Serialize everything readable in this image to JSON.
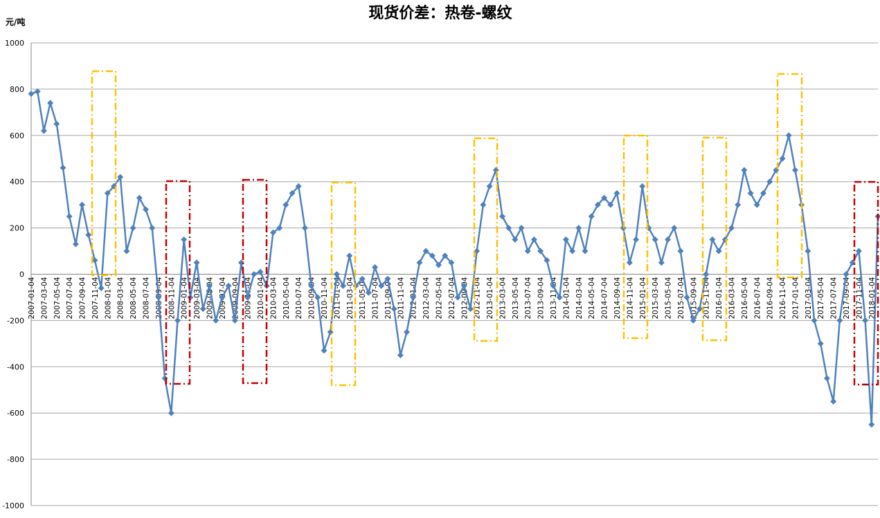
{
  "chart_data": {
    "type": "line",
    "title": "现货价差：热卷-螺纹",
    "y_label": "元/吨",
    "categories": [
      "2007-01-04",
      null,
      "2007-03-04",
      null,
      "2007-05-04",
      null,
      "2007-07-04",
      null,
      "2007-09-04",
      null,
      "2007-11-04",
      null,
      "2008-01-04",
      null,
      "2008-03-04",
      null,
      "2008-05-04",
      null,
      "2008-07-04",
      null,
      "2008-09-04",
      null,
      "2008-11-04",
      null,
      "2009-01-04",
      null,
      "2009-03-04",
      null,
      "2009-05-04",
      null,
      "2009-07-04",
      null,
      "2009-09-04",
      null,
      "2009-11-04",
      null,
      "2010-01-04",
      null,
      "2010-03-04",
      null,
      "2010-05-04",
      null,
      "2010-07-04",
      null,
      "2010-09-04",
      null,
      "2010-11-04",
      null,
      "2011-01-04",
      null,
      "2011-03-04",
      null,
      "2011-05-04",
      null,
      "2011-07-04",
      null,
      "2011-09-04",
      null,
      "2011-11-04",
      null,
      "2012-01-04",
      null,
      "2012-03-04",
      null,
      "2012-05-04",
      null,
      "2012-07-04",
      null,
      "2012-09-04",
      null,
      "2012-11-04",
      null,
      "2013-01-04",
      null,
      "2013-03-04",
      null,
      "2013-05-04",
      null,
      "2013-07-04",
      null,
      "2013-09-04",
      null,
      "2013-11-04",
      null,
      "2014-01-04",
      null,
      "2014-03-04",
      null,
      "2014-05-04",
      null,
      "2014-07-04",
      null,
      "2014-09-04",
      null,
      "2014-11-04",
      null,
      "2015-01-04",
      null,
      "2015-03-04",
      null,
      "2015-05-04",
      null,
      "2015-07-04",
      null,
      "2015-09-04",
      null,
      "2015-11-04",
      null,
      "2016-01-04",
      null,
      "2016-03-04",
      null,
      "2016-05-04",
      null,
      "2016-07-04",
      null,
      "2016-09-04",
      null,
      "2016-11-04",
      null,
      "2017-01-04",
      null,
      "2017-03-04",
      null,
      "2017-05-04",
      null,
      "2017-07-04",
      null,
      "2017-09-04",
      null,
      "2017-11-04",
      null,
      "2018-01-04",
      null
    ],
    "series": [
      {
        "color": "#4f81bd",
        "values": [
          780,
          790,
          620,
          740,
          650,
          460,
          250,
          130,
          300,
          170,
          60,
          -60,
          350,
          380,
          420,
          100,
          200,
          330,
          280,
          200,
          -100,
          -450,
          -600,
          -200,
          150,
          -100,
          50,
          -150,
          -50,
          -200,
          -100,
          -50,
          -200,
          50,
          -100,
          0,
          10,
          -50,
          180,
          200,
          300,
          350,
          380,
          200,
          -50,
          -100,
          -330,
          -250,
          0,
          -50,
          80,
          -50,
          -20,
          -80,
          30,
          -50,
          -20,
          -150,
          -350,
          -250,
          -100,
          50,
          100,
          80,
          40,
          80,
          50,
          -100,
          -50,
          -150,
          100,
          300,
          380,
          450,
          250,
          200,
          150,
          200,
          100,
          150,
          100,
          60,
          -50,
          -100,
          150,
          100,
          200,
          100,
          250,
          300,
          330,
          300,
          350,
          200,
          50,
          150,
          380,
          200,
          150,
          50,
          150,
          200,
          100,
          -100,
          -200,
          -150,
          0,
          150,
          100,
          150,
          200,
          300,
          450,
          350,
          300,
          350,
          400,
          450,
          500,
          600,
          450,
          300,
          100,
          -200,
          -300,
          -450,
          -550,
          -200,
          0,
          50,
          100,
          -200,
          -650,
          250
        ]
      }
    ],
    "ylim": [
      -1000,
      1000
    ],
    "yticks": [
      -1000,
      -800,
      -600,
      -400,
      -200,
      0,
      200,
      400,
      600,
      800,
      1000
    ],
    "grid": true
  }
}
